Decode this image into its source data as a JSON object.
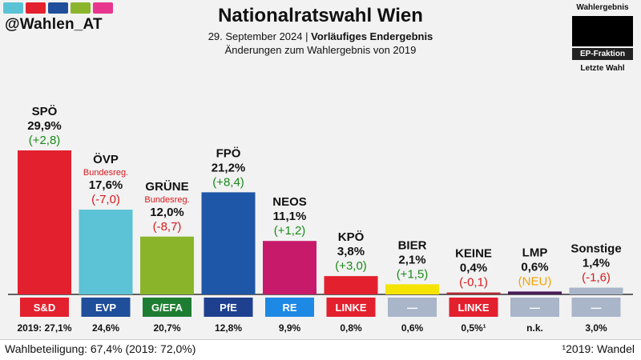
{
  "header": {
    "handle": "@Wahlen_AT",
    "title": "Nationalratswahl Wien",
    "date": "29. September 2024",
    "status": "Vorläufiges Endergebnis",
    "changes_note": "Änderungen zum Wahlergebnis von 2019"
  },
  "legend": {
    "top_label": "Wahlergebnis",
    "band_label": "EP-Fraktion",
    "bottom_label": "Letzte Wahl"
  },
  "logo_colors": [
    "#5bc3d5",
    "#e3202e",
    "#1f4e9b",
    "#8ab52a",
    "#e8368f"
  ],
  "footer": {
    "turnout": "Wahlbeteiligung: 67,4% (2019: 72,0%)",
    "footnote": "¹2019: Wandel"
  },
  "chart_data": {
    "type": "bar",
    "ylim": [
      0,
      30
    ],
    "categories": [
      "SPÖ",
      "ÖVP",
      "GRÜNE",
      "FPÖ",
      "NEOS",
      "KPÖ",
      "BIER",
      "KEINE",
      "LMP",
      "Sonstige"
    ],
    "values": [
      29.9,
      17.6,
      12.0,
      21.2,
      11.1,
      3.8,
      2.1,
      0.4,
      0.6,
      1.4
    ],
    "value_labels": [
      "29,9%",
      "17,6%",
      "12,0%",
      "21,2%",
      "11,1%",
      "3,8%",
      "2,1%",
      "0,4%",
      "0,6%",
      "1,4%"
    ],
    "changes": [
      "(+2,8)",
      "(-7,0)",
      "(-8,7)",
      "(+8,4)",
      "(+1,2)",
      "(+3,0)",
      "(+1,5)",
      "(-0,1)",
      "(NEU)",
      "(-1,6)"
    ],
    "change_colors": [
      "#1a8a1a",
      "#d7191c",
      "#d7191c",
      "#1a8a1a",
      "#1a8a1a",
      "#1a8a1a",
      "#1a8a1a",
      "#d7191c",
      "#f5a300",
      "#d7191c"
    ],
    "notes": [
      "",
      "Bundesreg.",
      "Bundesreg.",
      "",
      "",
      "",
      "",
      "",
      "",
      ""
    ],
    "ep_groups": [
      "S&D",
      "EVP",
      "G/EFA",
      "PfE",
      "RE",
      "LINKE",
      "—",
      "LINKE",
      "—",
      "—"
    ],
    "ep_colors": [
      "#e3202e",
      "#1f4e9b",
      "#1e7d32",
      "#1f3f8f",
      "#1e88e5",
      "#e3202e",
      "#a9b5c8",
      "#e3202e",
      "#a9b5c8",
      "#a9b5c8"
    ],
    "bar_colors": [
      "#e3202e",
      "#5bc3d5",
      "#8ab52a",
      "#1f57a8",
      "#c81a6a",
      "#e3202e",
      "#f5e400",
      "#b0282f",
      "#4a1a5a",
      "#a9b5c8"
    ],
    "previous": [
      "2019: 27,1%",
      "24,6%",
      "20,7%",
      "12,8%",
      "9,9%",
      "0,8%",
      "0,6%",
      "0,5%¹",
      "n.k.",
      "3,0%"
    ]
  }
}
